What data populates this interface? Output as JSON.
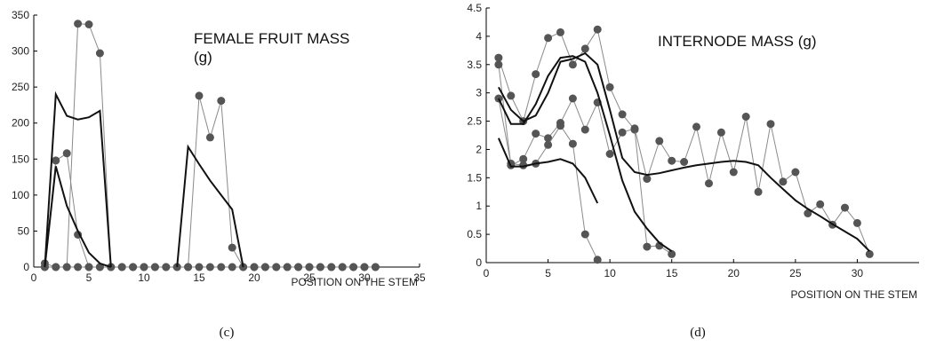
{
  "chart_data": [
    {
      "id": "c",
      "type": "line",
      "title": "FEMALE FRUIT MASS\n(g)",
      "xlabel": "POSITION ON THE STEM",
      "caption": "(c)",
      "xlim": [
        0,
        35
      ],
      "ylim": [
        0,
        350
      ],
      "xticks": [
        0,
        5,
        10,
        15,
        20,
        25,
        30,
        35
      ],
      "yticks": [
        0,
        50,
        100,
        150,
        200,
        250,
        300,
        350
      ],
      "grid": false,
      "series": [
        {
          "style": "raw",
          "x": [
            1,
            2,
            3,
            4,
            5,
            6,
            7,
            8,
            9,
            10,
            11,
            12,
            13,
            14,
            15,
            16,
            17,
            18,
            19,
            20,
            21,
            22,
            23,
            24,
            25,
            26,
            27,
            28,
            29,
            30,
            31
          ],
          "y": [
            5,
            0,
            0,
            338,
            337,
            297,
            0,
            0,
            0,
            0,
            0,
            0,
            0,
            0,
            238,
            180,
            231,
            27,
            0,
            0,
            0,
            0,
            0,
            0,
            0,
            0,
            0,
            0,
            0,
            0,
            0
          ]
        },
        {
          "style": "raw",
          "x": [
            1,
            2,
            3,
            4,
            5,
            6,
            7
          ],
          "y": [
            0,
            148,
            158,
            45,
            0,
            0,
            0
          ]
        },
        {
          "style": "raw",
          "x": [
            1,
            2,
            3,
            4,
            5,
            6,
            7,
            8,
            9,
            10,
            11,
            12,
            13,
            14,
            15,
            16,
            17,
            18,
            19,
            20,
            21,
            22,
            23,
            24,
            25,
            26,
            27,
            28,
            29,
            30,
            31
          ],
          "y": [
            0,
            0,
            0,
            0,
            0,
            0,
            0,
            0,
            0,
            0,
            0,
            0,
            0,
            0,
            0,
            0,
            0,
            0,
            0,
            0,
            0,
            0,
            0,
            0,
            0,
            0,
            0,
            0,
            0,
            0,
            0
          ]
        },
        {
          "style": "smooth",
          "x": [
            1,
            2,
            3,
            4,
            5,
            6,
            7
          ],
          "y": [
            0,
            240,
            210,
            205,
            208,
            217,
            0
          ]
        },
        {
          "style": "smooth",
          "x": [
            1,
            2,
            3,
            4,
            5,
            6,
            7
          ],
          "y": [
            0,
            140,
            85,
            50,
            20,
            5,
            0
          ]
        },
        {
          "style": "smooth",
          "x": [
            13,
            14,
            15,
            16,
            17,
            18,
            19
          ],
          "y": [
            0,
            167,
            143,
            120,
            100,
            80,
            0
          ]
        }
      ]
    },
    {
      "id": "d",
      "type": "line",
      "title": "INTERNODE MASS (g)",
      "xlabel": "POSITION ON THE STEM",
      "caption": "(d)",
      "xlim": [
        0,
        35
      ],
      "ylim": [
        0,
        4.5
      ],
      "xticks": [
        0,
        5,
        10,
        15,
        20,
        25,
        30
      ],
      "yticks": [
        0,
        0.5,
        1,
        1.5,
        2,
        2.5,
        3,
        3.5,
        4,
        4.5
      ],
      "grid": false,
      "series": [
        {
          "style": "raw",
          "x": [
            1,
            2,
            3,
            4,
            5,
            6,
            7,
            8,
            9,
            10,
            11,
            12,
            13,
            14,
            15
          ],
          "y": [
            3.62,
            2.95,
            2.5,
            3.33,
            3.97,
            4.07,
            3.5,
            3.78,
            4.12,
            3.1,
            2.62,
            2.35,
            0.28,
            0.3,
            0.15
          ]
        },
        {
          "style": "raw",
          "x": [
            1,
            2,
            3,
            4,
            5,
            6,
            7,
            8,
            9,
            10,
            11,
            12,
            13,
            14,
            15,
            16,
            17,
            18,
            19,
            20,
            21,
            22,
            23,
            24,
            25,
            26,
            27,
            28,
            29,
            30,
            31
          ],
          "y": [
            3.5,
            1.72,
            1.83,
            2.28,
            2.2,
            2.47,
            2.9,
            2.35,
            2.83,
            1.92,
            2.3,
            2.37,
            1.48,
            2.15,
            1.8,
            1.78,
            2.4,
            1.4,
            2.3,
            1.6,
            2.58,
            1.25,
            2.45,
            1.43,
            1.6,
            0.87,
            1.03,
            0.67,
            0.97,
            0.7,
            0.15
          ]
        },
        {
          "style": "raw",
          "x": [
            1,
            2,
            3,
            4,
            5,
            6,
            7,
            8,
            9
          ],
          "y": [
            2.9,
            1.75,
            1.72,
            1.75,
            2.08,
            2.42,
            2.1,
            0.5,
            0.05
          ]
        },
        {
          "style": "smooth",
          "x": [
            1,
            2,
            3,
            4,
            5,
            6,
            7,
            8,
            9,
            10,
            11,
            12,
            13,
            14,
            15
          ],
          "y": [
            2.9,
            2.45,
            2.45,
            2.8,
            3.3,
            3.62,
            3.65,
            3.55,
            3.0,
            2.25,
            1.45,
            0.9,
            0.6,
            0.35,
            0.2
          ]
        },
        {
          "style": "smooth",
          "x": [
            1,
            2,
            3,
            4,
            5,
            6,
            7,
            8,
            9,
            10,
            11,
            12,
            13,
            14,
            15,
            16,
            17,
            18,
            19,
            20,
            21,
            22,
            23,
            24,
            25,
            26,
            27,
            28,
            29,
            30,
            31
          ],
          "y": [
            3.1,
            2.7,
            2.5,
            2.6,
            3.0,
            3.55,
            3.6,
            3.7,
            3.5,
            2.7,
            1.85,
            1.6,
            1.55,
            1.58,
            1.63,
            1.68,
            1.72,
            1.75,
            1.78,
            1.8,
            1.78,
            1.72,
            1.5,
            1.3,
            1.1,
            0.95,
            0.82,
            0.68,
            0.55,
            0.42,
            0.2
          ]
        },
        {
          "style": "smooth",
          "x": [
            1,
            2,
            3,
            4,
            5,
            6,
            7,
            8,
            9
          ],
          "y": [
            2.2,
            1.7,
            1.7,
            1.75,
            1.78,
            1.83,
            1.75,
            1.5,
            1.05
          ]
        }
      ]
    }
  ]
}
